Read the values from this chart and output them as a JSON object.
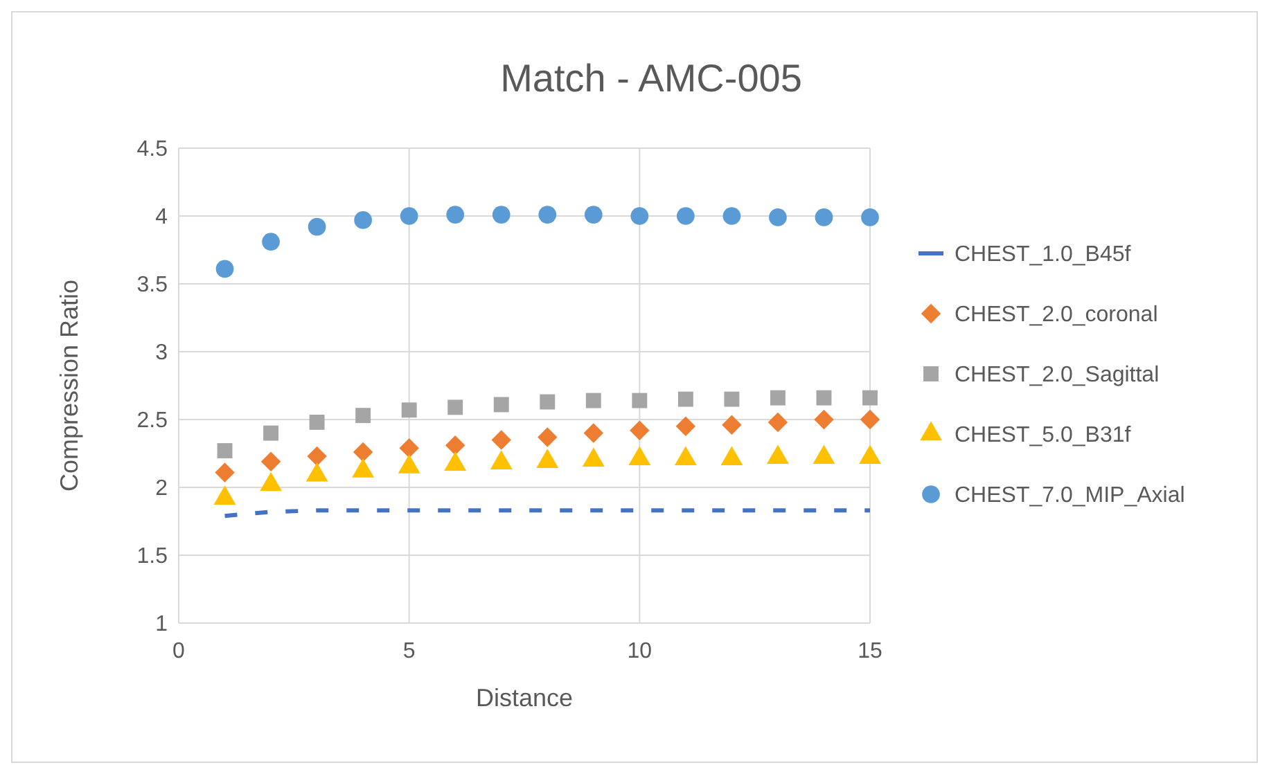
{
  "chart_data": {
    "type": "scatter",
    "title": "Match - AMC-005",
    "xlabel": "Distance",
    "ylabel": "Compression Ratio",
    "x": [
      1,
      2,
      3,
      4,
      5,
      6,
      7,
      8,
      9,
      10,
      11,
      12,
      13,
      14,
      15
    ],
    "xlim": [
      0,
      15
    ],
    "xticks": [
      0,
      5,
      10,
      15
    ],
    "ylim": [
      1,
      4.5
    ],
    "yticks": [
      1,
      1.5,
      2,
      2.5,
      3,
      3.5,
      4,
      4.5
    ],
    "grid": true,
    "legend": "right",
    "series": [
      {
        "name": "CHEST_1.0_B45f",
        "type": "line",
        "line_style": "dashed",
        "marker": "none",
        "color": "#4472c4",
        "values": [
          1.79,
          1.82,
          1.83,
          1.83,
          1.83,
          1.83,
          1.83,
          1.83,
          1.83,
          1.83,
          1.83,
          1.83,
          1.83,
          1.83,
          1.83
        ]
      },
      {
        "name": "CHEST_2.0_coronal",
        "marker": "diamond",
        "color": "#ed7d31",
        "values": [
          2.11,
          2.19,
          2.23,
          2.26,
          2.29,
          2.31,
          2.35,
          2.37,
          2.4,
          2.42,
          2.45,
          2.46,
          2.48,
          2.5,
          2.5
        ]
      },
      {
        "name": "CHEST_2.0_Sagittal",
        "marker": "square",
        "color": "#a5a5a5",
        "values": [
          2.27,
          2.4,
          2.48,
          2.53,
          2.57,
          2.59,
          2.61,
          2.63,
          2.64,
          2.64,
          2.65,
          2.65,
          2.66,
          2.66,
          2.66
        ]
      },
      {
        "name": "CHEST_5.0_B31f",
        "marker": "triangle",
        "color": "#ffc000",
        "values": [
          1.92,
          2.02,
          2.09,
          2.12,
          2.15,
          2.17,
          2.18,
          2.19,
          2.2,
          2.21,
          2.21,
          2.21,
          2.22,
          2.22,
          2.22
        ]
      },
      {
        "name": "CHEST_7.0_MIP_Axial",
        "marker": "circle",
        "color": "#5b9bd5",
        "values": [
          3.61,
          3.81,
          3.92,
          3.97,
          4.0,
          4.01,
          4.01,
          4.01,
          4.01,
          4.0,
          4.0,
          4.0,
          3.99,
          3.99,
          3.99
        ]
      }
    ]
  }
}
